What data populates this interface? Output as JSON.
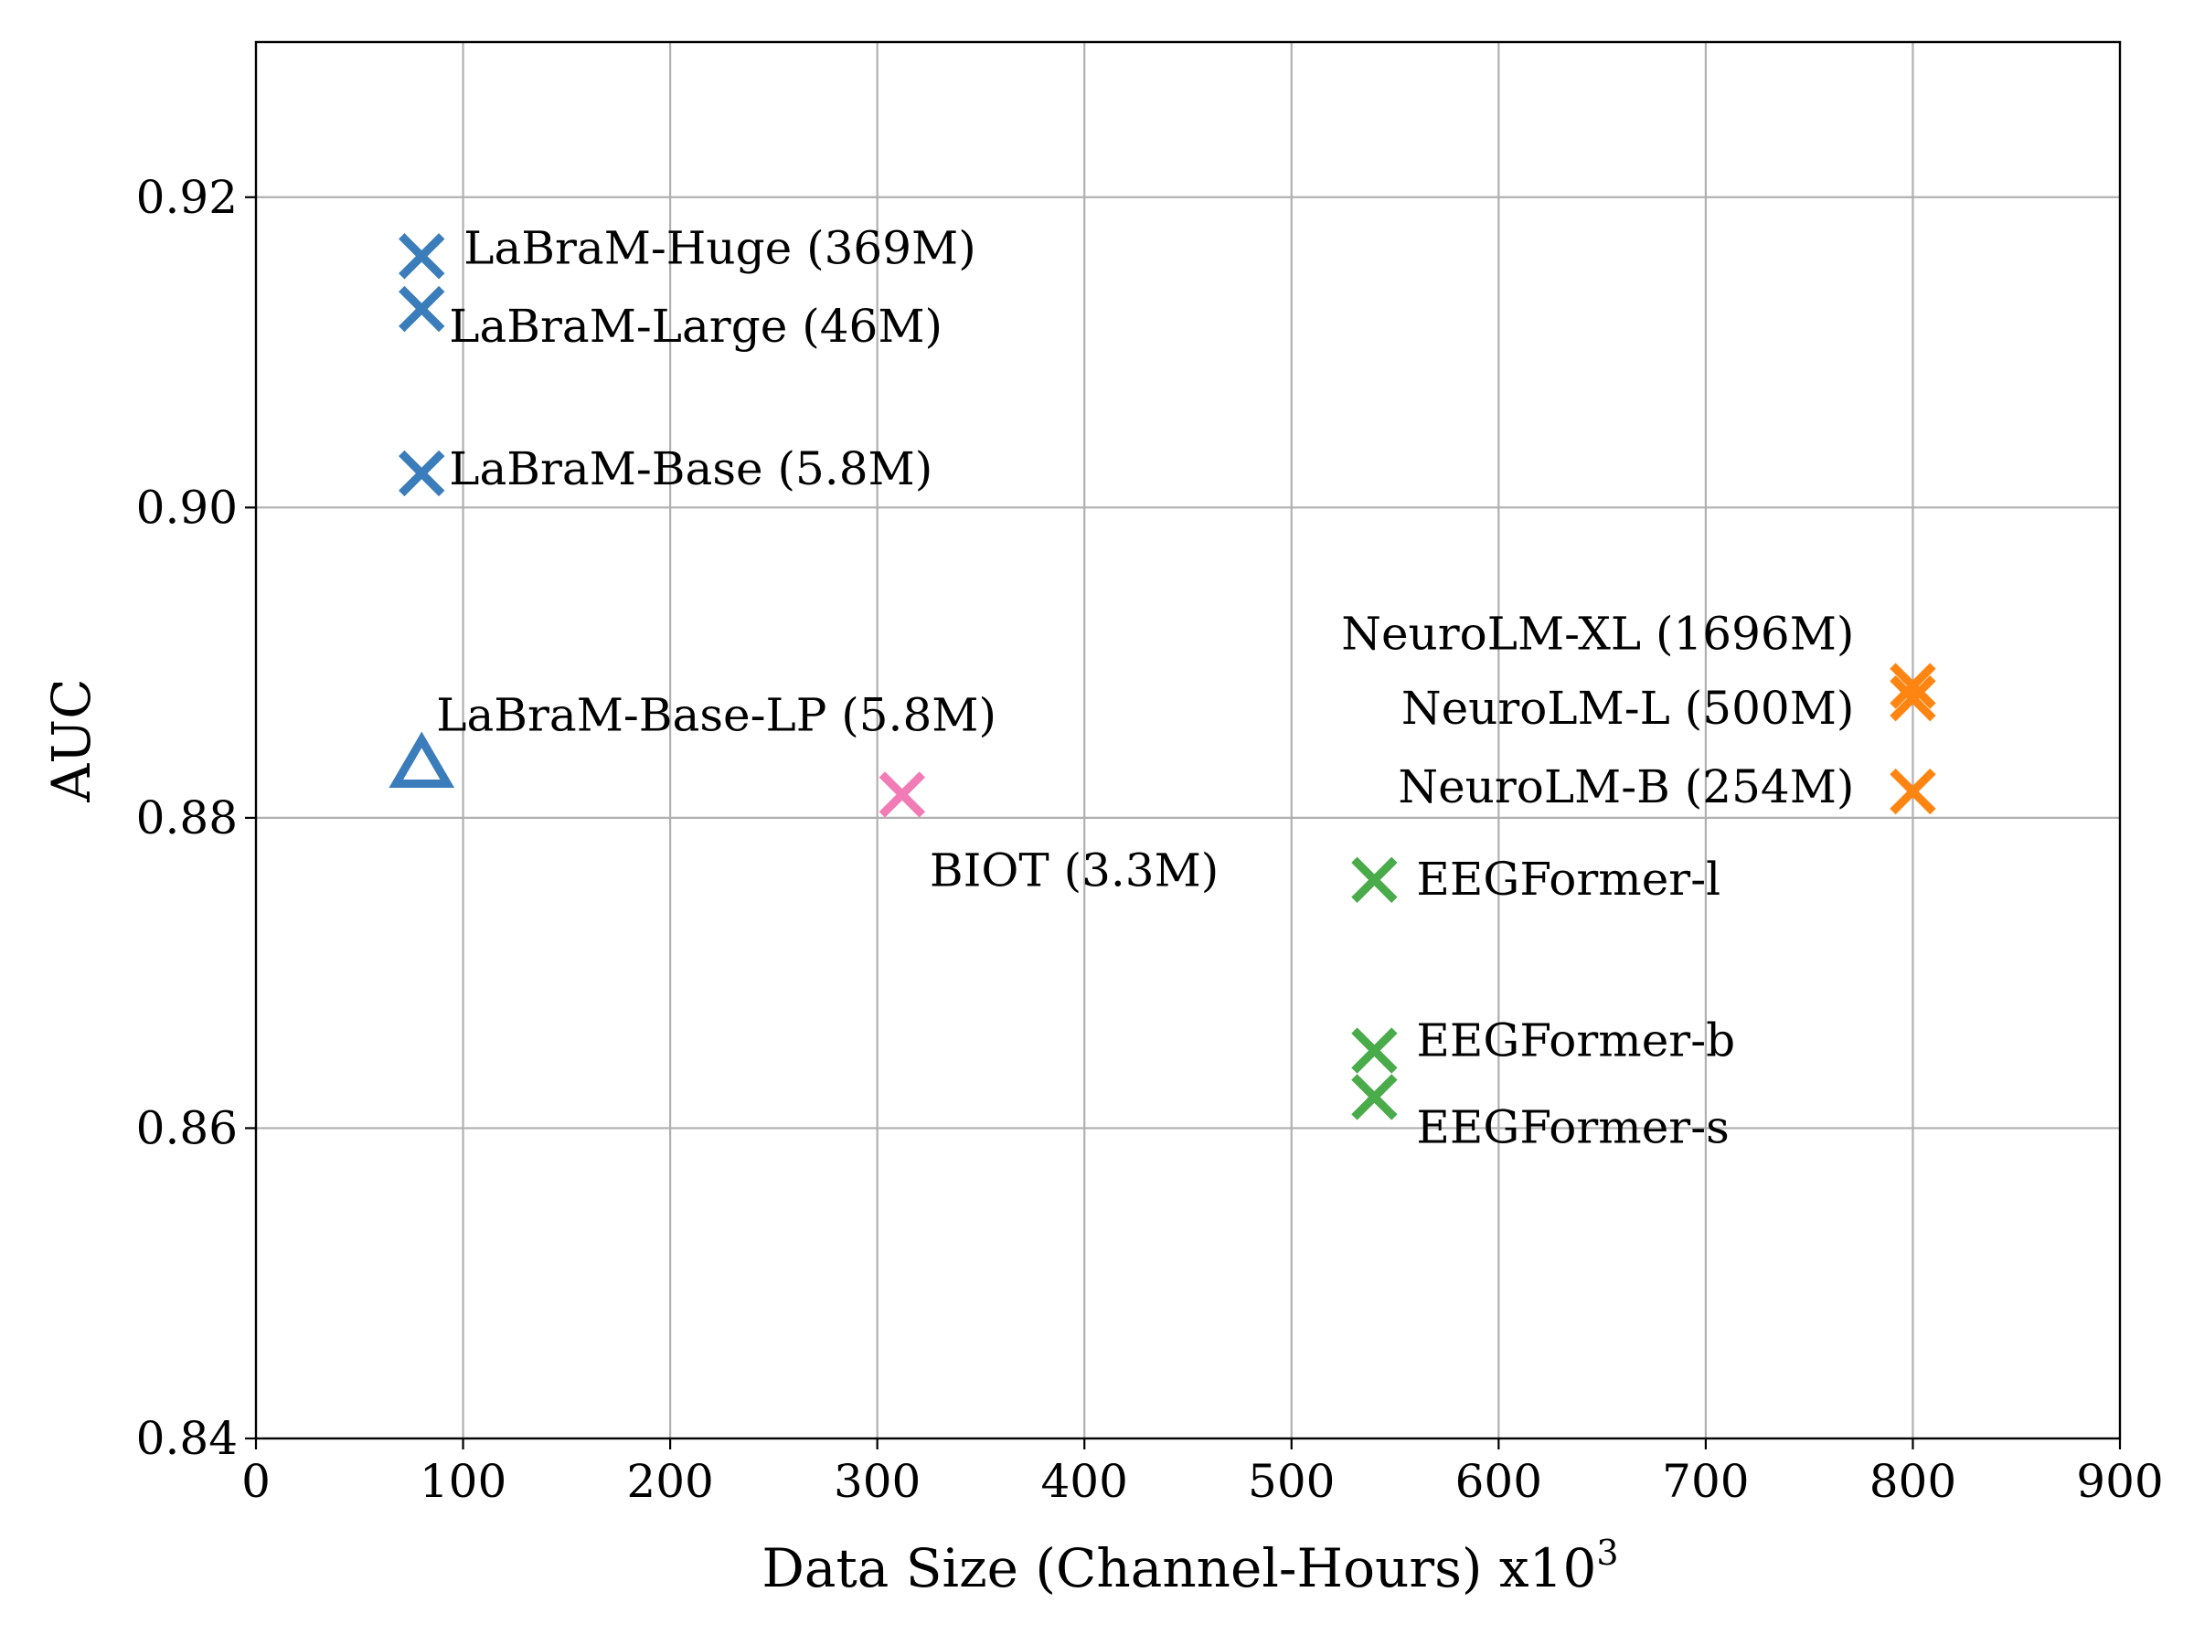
{
  "chart_data": {
    "type": "scatter",
    "title": "",
    "xlabel": "Data Size (Channel-Hours) x10",
    "xlabel_superscript": "3",
    "ylabel": "AUC",
    "xlim": [
      0,
      900
    ],
    "ylim": [
      0.84,
      0.93
    ],
    "grid": true,
    "x_ticks": [
      0,
      100,
      200,
      300,
      400,
      500,
      600,
      700,
      800,
      900
    ],
    "x_tick_labels": [
      "0",
      "100",
      "200",
      "300",
      "400",
      "500",
      "600",
      "700",
      "800",
      "900"
    ],
    "y_ticks": [
      0.84,
      0.86,
      0.88,
      0.9,
      0.92
    ],
    "y_tick_labels": [
      "0.84",
      "0.86",
      "0.88",
      "0.90",
      "0.92"
    ],
    "series": [
      {
        "name": "LaBraM",
        "color": "#3a7dba",
        "marker": "x",
        "points": [
          {
            "id": "labram-huge",
            "label": "LaBraM-Huge (369M)",
            "x": 80,
            "y": 0.9162
          },
          {
            "id": "labram-large",
            "label": "LaBraM-Large (46M)",
            "x": 80,
            "y": 0.9128
          },
          {
            "id": "labram-base",
            "label": "LaBraM-Base (5.8M)",
            "x": 80,
            "y": 0.9022
          }
        ]
      },
      {
        "name": "LaBraM-LP",
        "color": "#3a7dba",
        "marker": "triangle",
        "points": [
          {
            "id": "labram-base-lp",
            "label": "LaBraM-Base-LP (5.8M)",
            "x": 80,
            "y": 0.8835
          }
        ]
      },
      {
        "name": "BIOT",
        "color": "#f17cb5",
        "marker": "x",
        "points": [
          {
            "id": "biot",
            "label": "BIOT (3.3M)",
            "x": 312,
            "y": 0.8815
          }
        ]
      },
      {
        "name": "EEGFormer",
        "color": "#4aab4a",
        "marker": "x",
        "points": [
          {
            "id": "eegformer-l",
            "label": "EEGFormer-l",
            "x": 540,
            "y": 0.876
          },
          {
            "id": "eegformer-b",
            "label": "EEGFormer-b",
            "x": 540,
            "y": 0.865
          },
          {
            "id": "eegformer-s",
            "label": "EEGFormer-s",
            "x": 540,
            "y": 0.862
          }
        ]
      },
      {
        "name": "NeuroLM",
        "color": "#ff8512",
        "marker": "x",
        "points": [
          {
            "id": "neurolm-xl",
            "label": "NeuroLM-XL (1696M)",
            "x": 800,
            "y": 0.8885
          },
          {
            "id": "neurolm-l",
            "label": "NeuroLM-L (500M)",
            "x": 800,
            "y": 0.8877
          },
          {
            "id": "neurolm-b",
            "label": "NeuroLM-B (254M)",
            "x": 800,
            "y": 0.8817
          }
        ]
      }
    ]
  }
}
